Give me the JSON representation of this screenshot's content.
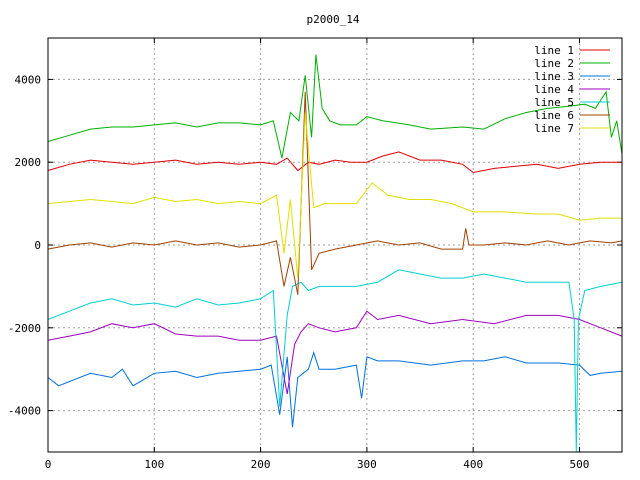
{
  "chart_data": {
    "type": "line",
    "title": "p2000_14",
    "xlabel": "",
    "ylabel": "",
    "xlim": [
      0,
      540
    ],
    "ylim": [
      -5000,
      5000
    ],
    "xticks": [
      0,
      100,
      200,
      300,
      400,
      500
    ],
    "yticks": [
      -4000,
      -2000,
      0,
      2000,
      4000
    ],
    "grid": true,
    "legend_position": "top-right",
    "series": [
      {
        "name": "line 1",
        "color": "#e00000",
        "x": [
          0,
          20,
          40,
          60,
          80,
          100,
          120,
          140,
          160,
          180,
          200,
          215,
          225,
          235,
          245,
          255,
          270,
          285,
          300,
          315,
          330,
          350,
          370,
          390,
          400,
          420,
          440,
          460,
          480,
          500,
          520,
          540
        ],
        "y": [
          1800,
          1950,
          2050,
          2000,
          1950,
          2000,
          2050,
          1950,
          2000,
          1950,
          2000,
          1950,
          2100,
          1800,
          2000,
          1950,
          2050,
          2000,
          2000,
          2150,
          2250,
          2050,
          2050,
          1950,
          1750,
          1850,
          1900,
          1950,
          1850,
          1950,
          2000,
          2000
        ]
      },
      {
        "name": "line 2",
        "color": "#00b000",
        "x": [
          0,
          20,
          40,
          60,
          80,
          100,
          120,
          140,
          160,
          180,
          200,
          212,
          220,
          228,
          236,
          242,
          248,
          252,
          258,
          265,
          275,
          290,
          300,
          315,
          340,
          360,
          390,
          410,
          430,
          450,
          470,
          490,
          505,
          515,
          525,
          530,
          535,
          540
        ],
        "y": [
          2500,
          2650,
          2800,
          2850,
          2850,
          2900,
          2950,
          2850,
          2950,
          2950,
          2900,
          3000,
          2100,
          3200,
          3000,
          4100,
          2600,
          4600,
          3300,
          3000,
          2900,
          2900,
          3100,
          3000,
          2900,
          2800,
          2850,
          2800,
          3050,
          3200,
          3300,
          3350,
          3400,
          3300,
          3700,
          2600,
          3000,
          2200
        ]
      },
      {
        "name": "line 3",
        "color": "#0070e0",
        "x": [
          0,
          10,
          20,
          40,
          60,
          70,
          80,
          100,
          120,
          140,
          160,
          180,
          200,
          210,
          218,
          225,
          230,
          235,
          240,
          245,
          250,
          255,
          270,
          290,
          295,
          300,
          310,
          330,
          360,
          390,
          410,
          430,
          450,
          480,
          500,
          510,
          520,
          540
        ],
        "y": [
          -3200,
          -3400,
          -3300,
          -3100,
          -3200,
          -3000,
          -3400,
          -3100,
          -3050,
          -3200,
          -3100,
          -3050,
          -3000,
          -2900,
          -4100,
          -2700,
          -4400,
          -3200,
          -3100,
          -3000,
          -2600,
          -3000,
          -3000,
          -2900,
          -3700,
          -2700,
          -2800,
          -2800,
          -2900,
          -2800,
          -2800,
          -2700,
          -2850,
          -2850,
          -2900,
          -3150,
          -3100,
          -3050
        ]
      },
      {
        "name": "line 4",
        "color": "#a000c0",
        "x": [
          0,
          20,
          40,
          60,
          80,
          100,
          120,
          140,
          160,
          180,
          200,
          215,
          225,
          232,
          238,
          245,
          255,
          270,
          290,
          300,
          310,
          330,
          360,
          390,
          420,
          450,
          480,
          500,
          520,
          540
        ],
        "y": [
          -2300,
          -2200,
          -2100,
          -1900,
          -2000,
          -1900,
          -2150,
          -2200,
          -2200,
          -2300,
          -2300,
          -2200,
          -3600,
          -2400,
          -2100,
          -1900,
          -2000,
          -2100,
          -2000,
          -1600,
          -1800,
          -1700,
          -1900,
          -1800,
          -1900,
          -1700,
          -1700,
          -1800,
          -2000,
          -2200
        ]
      },
      {
        "name": "line 5",
        "color": "#00d0d0",
        "x": [
          0,
          20,
          40,
          60,
          80,
          100,
          120,
          140,
          160,
          180,
          200,
          212,
          218,
          225,
          230,
          238,
          245,
          255,
          270,
          290,
          310,
          330,
          350,
          370,
          390,
          410,
          430,
          450,
          470,
          490,
          495,
          497,
          499,
          505,
          520,
          540
        ],
        "y": [
          -1800,
          -1600,
          -1400,
          -1300,
          -1450,
          -1400,
          -1500,
          -1300,
          -1450,
          -1400,
          -1300,
          -1100,
          -3900,
          -1700,
          -1000,
          -900,
          -1100,
          -1000,
          -1000,
          -1000,
          -900,
          -600,
          -700,
          -800,
          -800,
          -700,
          -800,
          -900,
          -900,
          -900,
          -1800,
          -5000,
          -1800,
          -1100,
          -1000,
          -900
        ]
      },
      {
        "name": "line 6",
        "color": "#a04000",
        "x": [
          0,
          20,
          40,
          60,
          80,
          100,
          120,
          140,
          160,
          180,
          200,
          215,
          222,
          228,
          235,
          242,
          248,
          255,
          270,
          290,
          310,
          330,
          350,
          370,
          390,
          393,
          396,
          410,
          430,
          450,
          470,
          490,
          510,
          530,
          540
        ],
        "y": [
          -100,
          0,
          50,
          -50,
          50,
          0,
          100,
          0,
          50,
          -50,
          0,
          100,
          -1000,
          -300,
          -1200,
          3700,
          -600,
          -200,
          -100,
          0,
          100,
          0,
          50,
          -100,
          -100,
          400,
          0,
          0,
          50,
          0,
          100,
          0,
          100,
          50,
          100
        ]
      },
      {
        "name": "line 7",
        "color": "#e0e000",
        "x": [
          0,
          20,
          40,
          60,
          80,
          100,
          120,
          140,
          160,
          180,
          200,
          215,
          222,
          228,
          235,
          242,
          250,
          260,
          275,
          290,
          305,
          320,
          340,
          360,
          380,
          400,
          430,
          460,
          480,
          500,
          520,
          540
        ],
        "y": [
          1000,
          1050,
          1100,
          1050,
          1000,
          1150,
          1050,
          1100,
          1000,
          1050,
          1000,
          1200,
          -200,
          1100,
          -800,
          3200,
          900,
          1000,
          1000,
          1000,
          1500,
          1200,
          1100,
          1100,
          1000,
          800,
          800,
          750,
          750,
          600,
          650,
          650
        ]
      }
    ]
  }
}
